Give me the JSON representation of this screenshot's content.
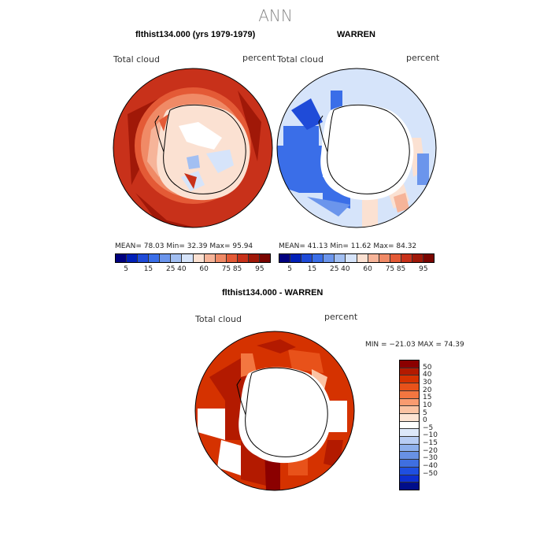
{
  "title": "ANN",
  "panels": [
    {
      "title": "flthist134.000 (yrs 1979-1979)",
      "left_label": "Total cloud",
      "right_label": "percent",
      "mean_text": "MEAN=   78.03   Min=   32.39   Max=   95.94"
    },
    {
      "title": "WARREN",
      "left_label": "Total cloud",
      "right_label": "percent",
      "mean_text": "MEAN=   41.13   Min=   11.62   Max=   84.32"
    }
  ],
  "diff_panel": {
    "title": "flthist134.000 - WARREN",
    "left_label": "Total cloud",
    "right_label": "percent",
    "minmax_text": "MIN = −21.03 MAX =   74.39"
  },
  "colorbar_top": {
    "colors": [
      "#00007f",
      "#0020b8",
      "#1f4bd8",
      "#3a6ee8",
      "#6b95ec",
      "#a2bff2",
      "#d6e4fa",
      "#fbe1d2",
      "#f6b499",
      "#f08a66",
      "#e45a36",
      "#c8311a",
      "#a01808",
      "#7a0500"
    ],
    "tick_labels": [
      "5",
      "15",
      "25",
      "40",
      "60",
      "75",
      "85",
      "95"
    ]
  },
  "colorbar_diff": {
    "colors": [
      "#8b0000",
      "#b31a00",
      "#d53200",
      "#e8521a",
      "#f37640",
      "#f99b70",
      "#fbc3a3",
      "#fde4d3",
      "#ffffff",
      "#dde8fa",
      "#b8cdf4",
      "#8eb0ec",
      "#6891e4",
      "#3f6fe0",
      "#1f4fe0",
      "#0d2fd0",
      "#000e8a"
    ],
    "tick_labels": [
      "50",
      "40",
      "30",
      "20",
      "15",
      "10",
      "5",
      "0",
      "−5",
      "−10",
      "−15",
      "−20",
      "−30",
      "−40",
      "−50"
    ]
  }
}
